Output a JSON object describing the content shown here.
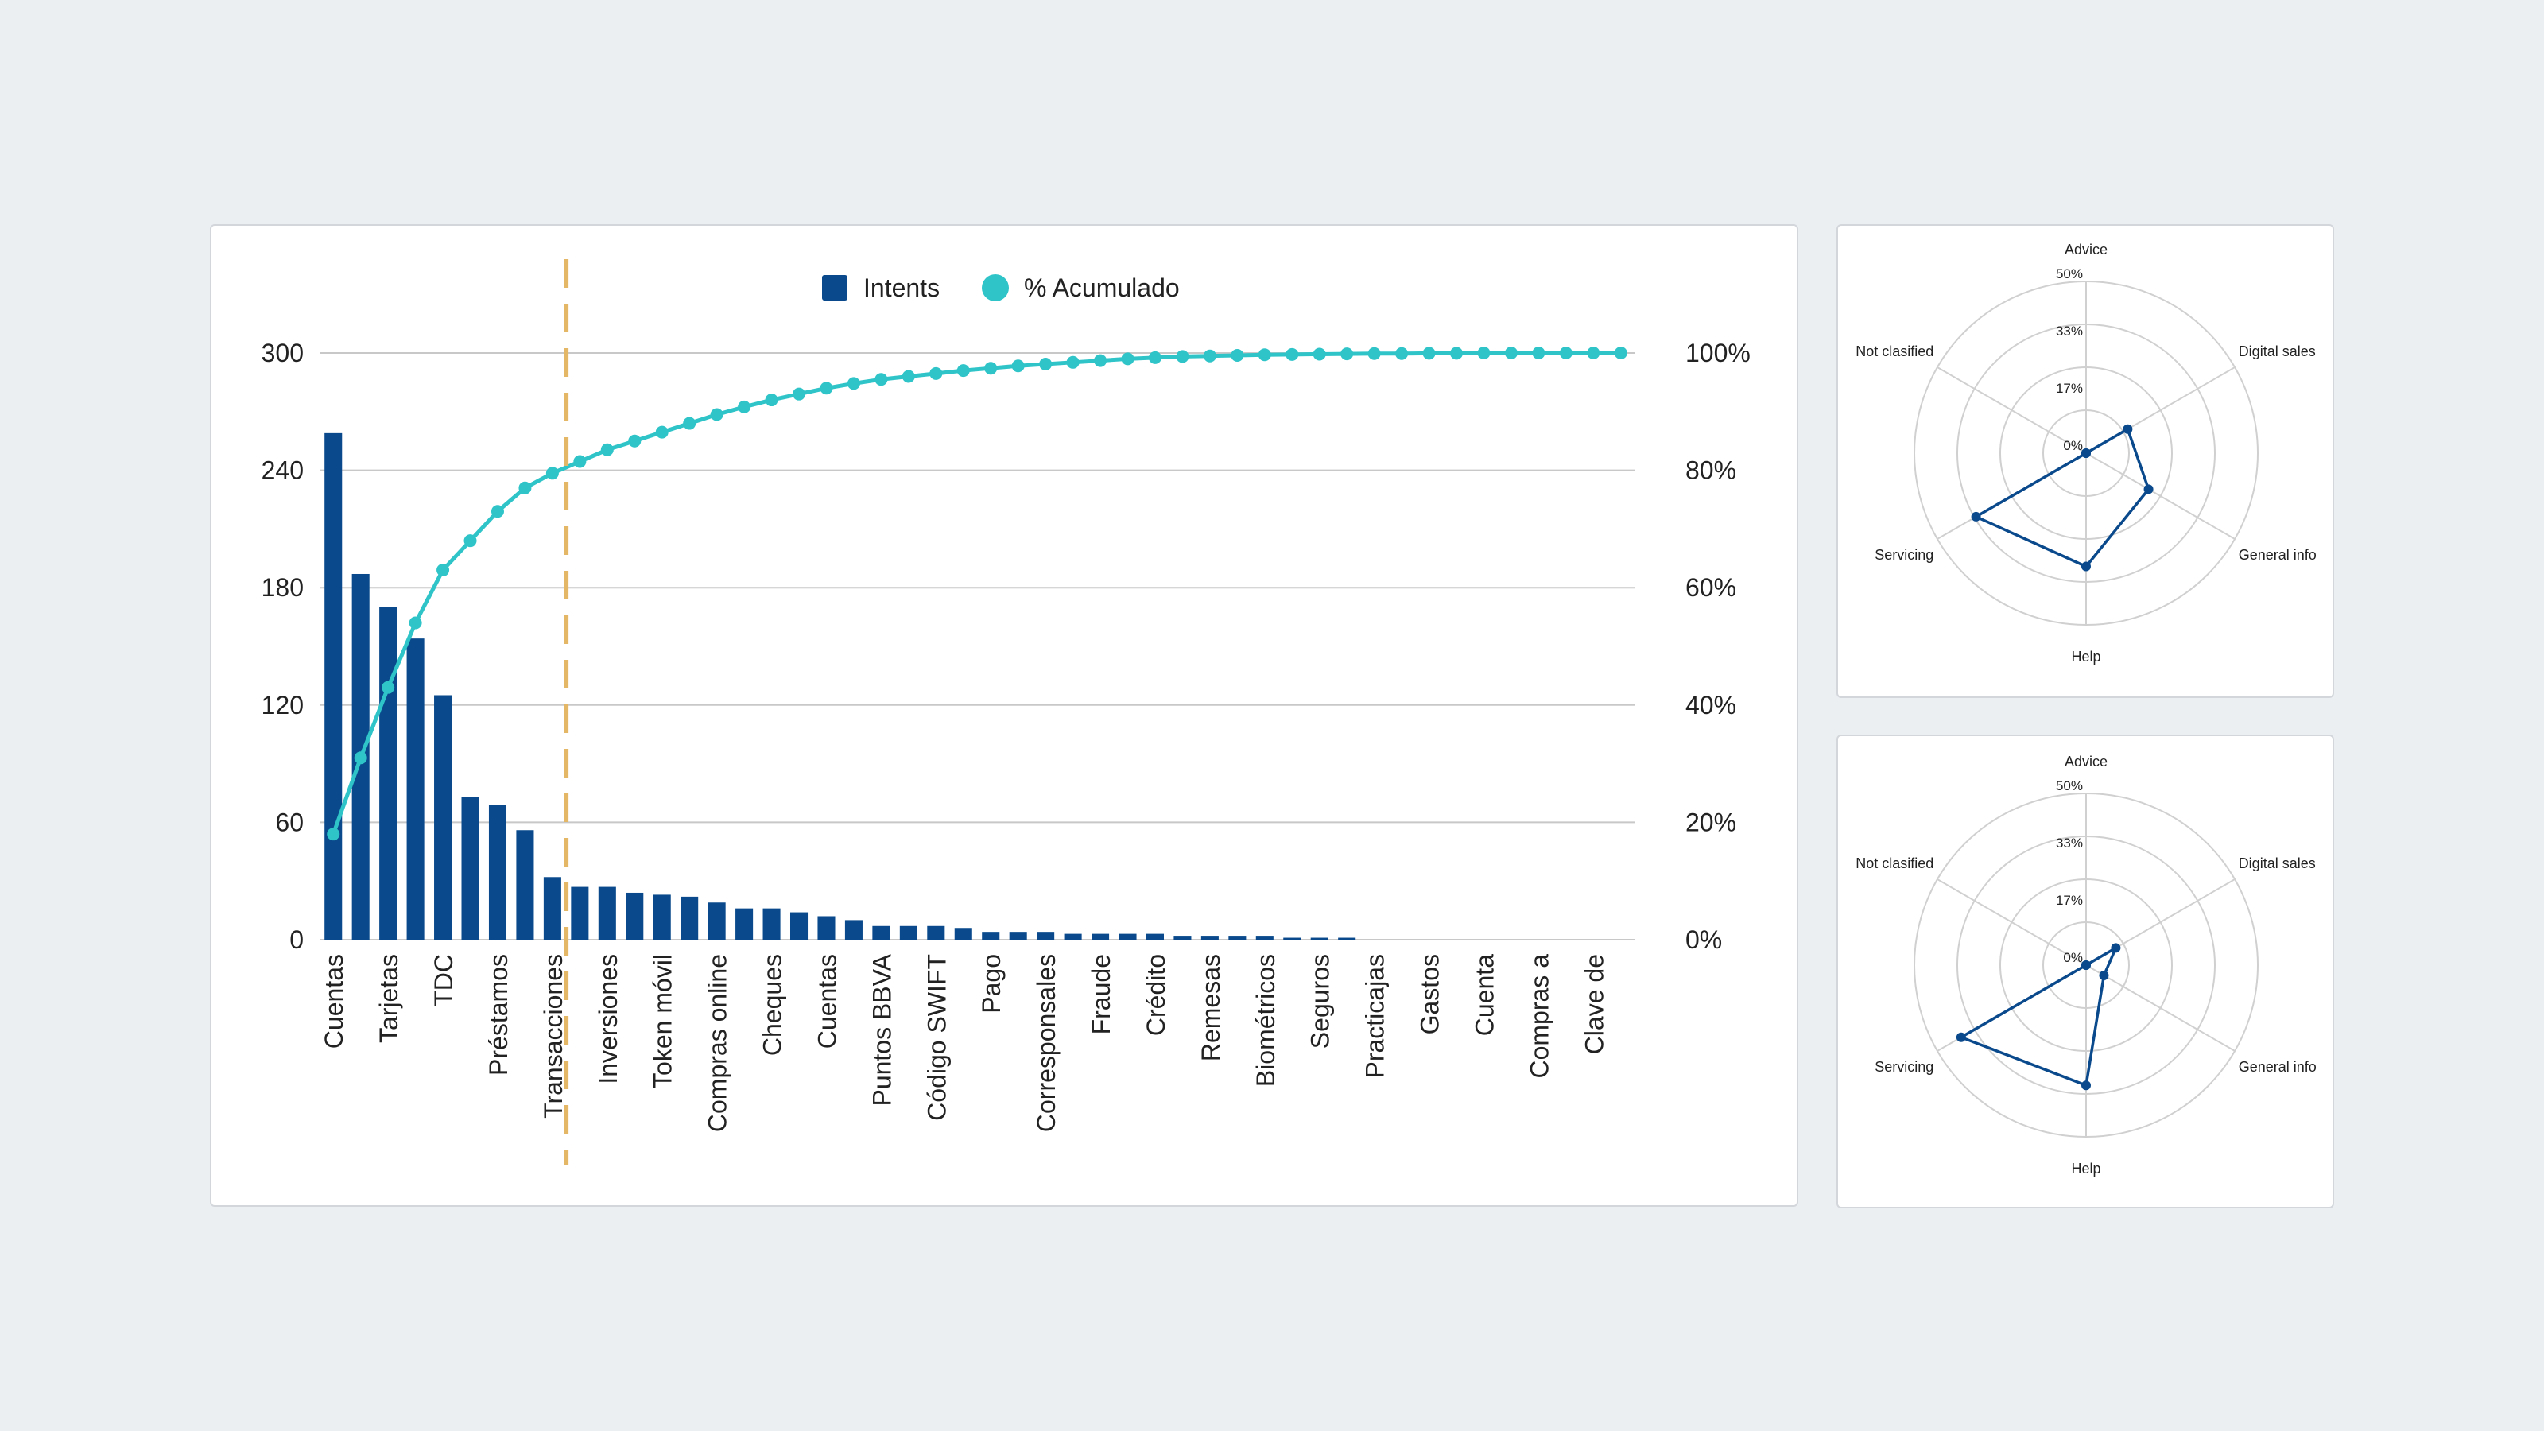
{
  "chart_data": [
    {
      "type": "bar",
      "combo": "pareto",
      "legend": {
        "position": "top",
        "entries": [
          "Intents",
          "% Acumulado"
        ]
      },
      "colors": {
        "bars": "#0a4a8c",
        "line": "#2ec4c8",
        "cutoff": "#e3b766",
        "grid": "#c8c8c8"
      },
      "y_left": {
        "ticks": [
          "0",
          "60",
          "120",
          "180",
          "240",
          "300"
        ],
        "range": [
          0,
          300
        ]
      },
      "y_right": {
        "ticks": [
          "0%",
          "20%",
          "40%",
          "60%",
          "80%",
          "100%"
        ],
        "range": [
          0,
          100
        ]
      },
      "grid": true,
      "cutoff_after_category_index": 8,
      "categories": [
        "Cuentas",
        "",
        "Tarjetas",
        "",
        "TDC",
        "",
        "Préstamos",
        "",
        "Transacciones",
        "",
        "Inversiones",
        "",
        "Token móvil",
        "",
        "Compras online",
        "",
        "Cheques",
        "",
        "Cuentas",
        "",
        "Puntos BBVA",
        "",
        "Código SWIFT",
        "",
        "Pago",
        "",
        "Corresponsales",
        "",
        "Fraude",
        "",
        "Crédito",
        "",
        "Remesas",
        "",
        "Biométricos",
        "",
        "Seguros",
        "",
        "Practicajas",
        "",
        "Gastos",
        "",
        "Cuenta",
        "",
        "Compras a",
        "",
        "Clave de",
        ""
      ],
      "series": [
        {
          "name": "Intents",
          "kind": "bar",
          "axis": "left",
          "values": [
            259,
            187,
            170,
            154,
            125,
            73,
            69,
            56,
            32,
            27,
            27,
            24,
            23,
            22,
            19,
            16,
            16,
            14,
            12,
            10,
            7,
            7,
            7,
            6,
            4,
            4,
            4,
            3,
            3,
            3,
            3,
            2,
            2,
            2,
            2,
            1,
            1,
            1,
            0,
            0,
            0,
            0,
            0,
            0,
            0,
            0,
            0,
            0
          ]
        },
        {
          "name": "% Acumulado",
          "kind": "line",
          "axis": "right",
          "values": [
            18,
            31,
            43,
            54,
            63,
            68,
            73,
            77,
            79.5,
            81.5,
            83.5,
            85,
            86.5,
            88,
            89.5,
            90.8,
            92,
            93,
            94,
            94.8,
            95.5,
            96,
            96.5,
            97,
            97.4,
            97.8,
            98.1,
            98.4,
            98.7,
            99,
            99.2,
            99.4,
            99.5,
            99.6,
            99.7,
            99.75,
            99.8,
            99.85,
            99.9,
            99.9,
            99.95,
            99.95,
            100,
            100,
            100,
            100,
            100,
            100
          ]
        }
      ]
    },
    {
      "type": "radar",
      "axes": [
        "Advice",
        "Digital sales",
        "General info",
        "Help",
        "Servicing",
        "Not clasified"
      ],
      "ring_labels": [
        "0%",
        "17%",
        "33%",
        "50%"
      ],
      "range": [
        0,
        50
      ],
      "series": [
        {
          "values": [
            0,
            14,
            21,
            33,
            37,
            0
          ],
          "color": "#0a4a8c"
        }
      ]
    },
    {
      "type": "radar",
      "axes": [
        "Advice",
        "Digital sales",
        "General info",
        "Help",
        "Servicing",
        "Not clasified"
      ],
      "ring_labels": [
        "0%",
        "17%",
        "33%",
        "50%"
      ],
      "range": [
        0,
        50
      ],
      "series": [
        {
          "values": [
            0,
            10,
            6,
            35,
            42,
            0
          ],
          "color": "#0a4a8c"
        }
      ]
    }
  ]
}
